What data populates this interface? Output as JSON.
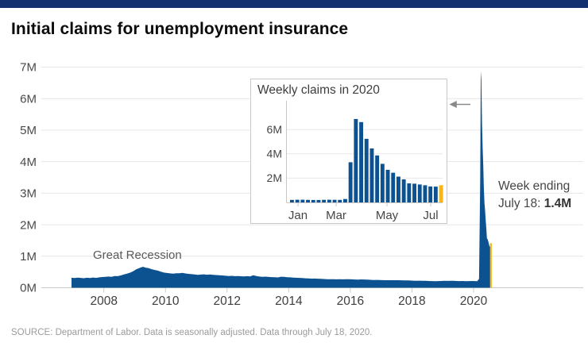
{
  "page": {
    "title": "Initial claims for unemployment insurance",
    "source_note": "SOURCE: Department of Labor. Data is seasonally adjusted. Data through July 18, 2020."
  },
  "colors": {
    "brand_navy": "#12316e",
    "series_blue": "#0d5290",
    "highlight_gold": "#fdb515",
    "gridline": "#e6e6e6",
    "axis_line": "#c9c9c9",
    "axis_label": "#4a4a4a"
  },
  "icons": {
    "inset_pointer": "left-arrow"
  },
  "chart_data": [
    {
      "type": "area",
      "name": "initial-claims-2007-2020",
      "title": "Initial claims for unemployment insurance",
      "unit": "millions of claims per week",
      "ylim": [
        0,
        7
      ],
      "xlim": [
        2006.95,
        2020.6
      ],
      "grid": true,
      "y_tick_labels": [
        "0M",
        "1M",
        "2M",
        "3M",
        "4M",
        "5M",
        "6M",
        "7M"
      ],
      "x_tick_labels": [
        "2008",
        "2010",
        "2012",
        "2014",
        "2016",
        "2018",
        "2020"
      ],
      "x_tick_years": [
        2008,
        2010,
        2012,
        2014,
        2016,
        2018,
        2020
      ],
      "annotations": [
        {
          "text": "Great Recession"
        },
        {
          "line1": "Week ending",
          "line2_prefix": "July 18: ",
          "line2_value": "1.4M"
        }
      ],
      "last_point_highlighted": true,
      "points": [
        [
          2006.95,
          0.317
        ],
        [
          2007.05,
          0.308
        ],
        [
          2007.15,
          0.32
        ],
        [
          2007.25,
          0.311
        ],
        [
          2007.35,
          0.302
        ],
        [
          2007.45,
          0.318
        ],
        [
          2007.55,
          0.308
        ],
        [
          2007.65,
          0.325
        ],
        [
          2007.75,
          0.312
        ],
        [
          2007.85,
          0.33
        ],
        [
          2007.95,
          0.34
        ],
        [
          2008.05,
          0.348
        ],
        [
          2008.15,
          0.355
        ],
        [
          2008.25,
          0.345
        ],
        [
          2008.35,
          0.372
        ],
        [
          2008.45,
          0.368
        ],
        [
          2008.55,
          0.39
        ],
        [
          2008.65,
          0.42
        ],
        [
          2008.75,
          0.445
        ],
        [
          2008.85,
          0.478
        ],
        [
          2008.95,
          0.524
        ],
        [
          2009.05,
          0.585
        ],
        [
          2009.15,
          0.622
        ],
        [
          2009.22,
          0.652
        ],
        [
          2009.28,
          0.665
        ],
        [
          2009.35,
          0.64
        ],
        [
          2009.45,
          0.625
        ],
        [
          2009.55,
          0.59
        ],
        [
          2009.65,
          0.565
        ],
        [
          2009.75,
          0.545
        ],
        [
          2009.85,
          0.512
        ],
        [
          2009.95,
          0.48
        ],
        [
          2010.05,
          0.468
        ],
        [
          2010.15,
          0.456
        ],
        [
          2010.25,
          0.448
        ],
        [
          2010.35,
          0.46
        ],
        [
          2010.45,
          0.462
        ],
        [
          2010.55,
          0.47
        ],
        [
          2010.65,
          0.452
        ],
        [
          2010.75,
          0.44
        ],
        [
          2010.85,
          0.43
        ],
        [
          2010.95,
          0.42
        ],
        [
          2011.05,
          0.41
        ],
        [
          2011.15,
          0.418
        ],
        [
          2011.25,
          0.425
        ],
        [
          2011.35,
          0.412
        ],
        [
          2011.45,
          0.42
        ],
        [
          2011.55,
          0.408
        ],
        [
          2011.65,
          0.402
        ],
        [
          2011.75,
          0.398
        ],
        [
          2011.85,
          0.39
        ],
        [
          2011.95,
          0.38
        ],
        [
          2012.05,
          0.37
        ],
        [
          2012.15,
          0.378
        ],
        [
          2012.25,
          0.368
        ],
        [
          2012.35,
          0.372
        ],
        [
          2012.45,
          0.365
        ],
        [
          2012.55,
          0.36
        ],
        [
          2012.65,
          0.368
        ],
        [
          2012.75,
          0.36
        ],
        [
          2012.85,
          0.395
        ],
        [
          2012.95,
          0.372
        ],
        [
          2013.05,
          0.355
        ],
        [
          2013.15,
          0.348
        ],
        [
          2013.25,
          0.352
        ],
        [
          2013.35,
          0.342
        ],
        [
          2013.45,
          0.338
        ],
        [
          2013.55,
          0.332
        ],
        [
          2013.65,
          0.328
        ],
        [
          2013.75,
          0.35
        ],
        [
          2013.85,
          0.345
        ],
        [
          2013.95,
          0.335
        ],
        [
          2014.05,
          0.33
        ],
        [
          2014.15,
          0.322
        ],
        [
          2014.25,
          0.318
        ],
        [
          2014.35,
          0.312
        ],
        [
          2014.45,
          0.308
        ],
        [
          2014.55,
          0.3
        ],
        [
          2014.65,
          0.295
        ],
        [
          2014.75,
          0.29
        ],
        [
          2014.85,
          0.292
        ],
        [
          2014.95,
          0.288
        ],
        [
          2015.05,
          0.282
        ],
        [
          2015.15,
          0.278
        ],
        [
          2015.25,
          0.272
        ],
        [
          2015.35,
          0.27
        ],
        [
          2015.45,
          0.272
        ],
        [
          2015.55,
          0.268
        ],
        [
          2015.65,
          0.27
        ],
        [
          2015.75,
          0.268
        ],
        [
          2015.85,
          0.272
        ],
        [
          2015.95,
          0.27
        ],
        [
          2016.05,
          0.268
        ],
        [
          2016.15,
          0.262
        ],
        [
          2016.25,
          0.258
        ],
        [
          2016.35,
          0.265
        ],
        [
          2016.45,
          0.262
        ],
        [
          2016.55,
          0.258
        ],
        [
          2016.65,
          0.252
        ],
        [
          2016.75,
          0.248
        ],
        [
          2016.85,
          0.25
        ],
        [
          2016.95,
          0.245
        ],
        [
          2017.05,
          0.242
        ],
        [
          2017.15,
          0.24
        ],
        [
          2017.25,
          0.238
        ],
        [
          2017.35,
          0.24
        ],
        [
          2017.45,
          0.238
        ],
        [
          2017.55,
          0.24
        ],
        [
          2017.65,
          0.236
        ],
        [
          2017.75,
          0.234
        ],
        [
          2017.85,
          0.232
        ],
        [
          2017.95,
          0.228
        ],
        [
          2018.05,
          0.224
        ],
        [
          2018.15,
          0.222
        ],
        [
          2018.25,
          0.225
        ],
        [
          2018.35,
          0.22
        ],
        [
          2018.45,
          0.218
        ],
        [
          2018.55,
          0.214
        ],
        [
          2018.65,
          0.212
        ],
        [
          2018.75,
          0.21
        ],
        [
          2018.85,
          0.212
        ],
        [
          2018.95,
          0.215
        ],
        [
          2019.05,
          0.22
        ],
        [
          2019.15,
          0.216
        ],
        [
          2019.25,
          0.218
        ],
        [
          2019.35,
          0.222
        ],
        [
          2019.45,
          0.215
        ],
        [
          2019.55,
          0.212
        ],
        [
          2019.65,
          0.214
        ],
        [
          2019.75,
          0.21
        ],
        [
          2019.85,
          0.212
        ],
        [
          2019.95,
          0.215
        ],
        [
          2020.05,
          0.212
        ],
        [
          2020.12,
          0.21
        ],
        [
          2020.18,
          0.282
        ],
        [
          2020.215,
          3.307
        ],
        [
          2020.235,
          6.867
        ],
        [
          2020.255,
          6.615
        ],
        [
          2020.275,
          5.237
        ],
        [
          2020.295,
          4.442
        ],
        [
          2020.315,
          3.867
        ],
        [
          2020.335,
          3.176
        ],
        [
          2020.355,
          2.687
        ],
        [
          2020.375,
          2.446
        ],
        [
          2020.395,
          2.123
        ],
        [
          2020.415,
          1.897
        ],
        [
          2020.435,
          1.566
        ],
        [
          2020.455,
          1.54
        ],
        [
          2020.475,
          1.48
        ],
        [
          2020.495,
          1.413
        ],
        [
          2020.515,
          1.314
        ],
        [
          2020.53,
          1.3
        ],
        [
          2020.545,
          1.416
        ]
      ]
    },
    {
      "type": "bar",
      "name": "weekly-claims-2020-inset",
      "title": "Weekly claims in 2020",
      "unit": "millions of claims per week",
      "ylim": [
        0,
        7.3
      ],
      "grid": true,
      "y_tick_labels": [
        "2M",
        "4M",
        "6M"
      ],
      "x_tick_labels": [
        "Jan",
        "Mar",
        "May",
        "Jul"
      ],
      "highlight_last_index": 28,
      "values_millions": [
        0.212,
        0.22,
        0.223,
        0.212,
        0.201,
        0.204,
        0.215,
        0.22,
        0.217,
        0.211,
        0.282,
        3.307,
        6.867,
        6.615,
        5.237,
        4.442,
        3.867,
        3.176,
        2.687,
        2.446,
        2.123,
        1.897,
        1.566,
        1.54,
        1.48,
        1.413,
        1.314,
        1.3,
        1.416
      ]
    }
  ]
}
